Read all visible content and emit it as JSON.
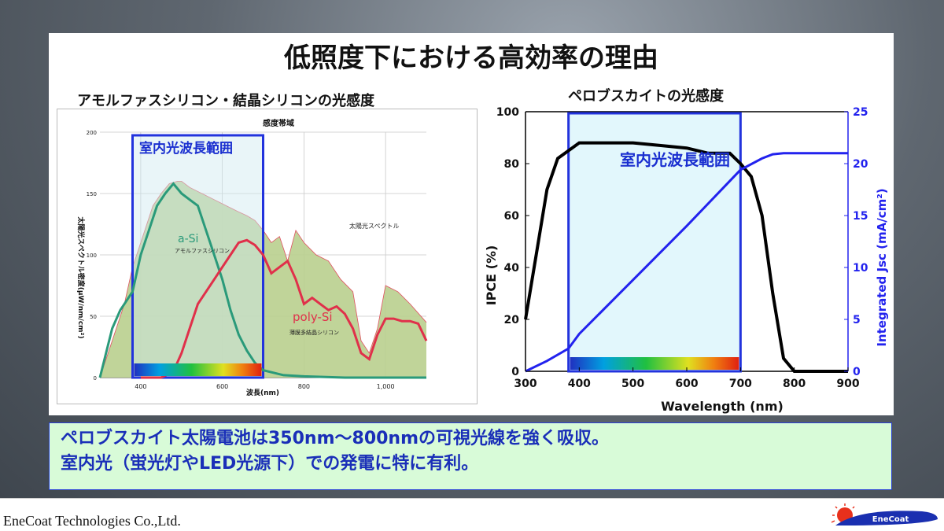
{
  "slide": {
    "title": "低照度下における高効率の理由",
    "left_subtitle": "アモルファスシリコン・結晶シリコンの光感度",
    "right_subtitle": "ペロブスカイトの光感度",
    "indoor_label": "室内光波長範囲",
    "note_line1": "ペロブスカイト太陽電池は350nm～800nmの可視光線を強く吸収。",
    "note_line2": "室内光（蛍光灯やLED光源下）での発電に特に有利。",
    "company": "EneCoat Technologies Co.,Ltd.",
    "logo_text": "EneCoat"
  },
  "chart_data": [
    {
      "type": "area",
      "title": "感度帯域",
      "ylabel": "太陽光スペクトル密度(μW/nm/cm²)",
      "xlabel": "波長(nm)",
      "xlim": [
        300,
        1100
      ],
      "ylim": [
        0,
        200
      ],
      "xticks": [
        "400",
        "600",
        "800",
        "1,000"
      ],
      "yticks": [
        "0",
        "50",
        "100",
        "150",
        "200"
      ],
      "indoor_range_nm": [
        380,
        700
      ],
      "grid": true,
      "spectrum_label": "太陽光スペクトル",
      "spectrum": {
        "x": [
          300,
          330,
          360,
          380,
          400,
          430,
          450,
          470,
          490,
          500,
          520,
          550,
          580,
          610,
          640,
          660,
          680,
          700,
          720,
          740,
          760,
          780,
          800,
          830,
          860,
          890,
          920,
          940,
          960,
          980,
          1000,
          1030,
          1060,
          1100
        ],
        "y": [
          0,
          30,
          60,
          90,
          110,
          140,
          150,
          158,
          160,
          160,
          155,
          150,
          145,
          140,
          135,
          132,
          128,
          120,
          110,
          115,
          95,
          120,
          110,
          100,
          95,
          80,
          70,
          30,
          20,
          40,
          75,
          70,
          60,
          45
        ]
      },
      "series": [
        {
          "name": "a-Si",
          "sublabel": "アモルファスシリコン",
          "color": "#2a9a7a",
          "x": [
            300,
            330,
            350,
            360,
            380,
            400,
            420,
            440,
            460,
            480,
            500,
            520,
            540,
            560,
            580,
            600,
            620,
            640,
            660,
            680,
            700,
            750,
            800,
            900,
            1000,
            1100
          ],
          "y": [
            0,
            40,
            55,
            60,
            70,
            100,
            120,
            140,
            150,
            158,
            150,
            145,
            140,
            120,
            100,
            80,
            55,
            35,
            22,
            12,
            6,
            2,
            1,
            0,
            0,
            0
          ]
        },
        {
          "name": "poly-Si",
          "sublabel": "薄膜多結晶シリコン",
          "color": "#e0304a",
          "x": [
            400,
            450,
            480,
            500,
            520,
            540,
            560,
            580,
            600,
            620,
            640,
            660,
            680,
            700,
            720,
            740,
            760,
            780,
            800,
            820,
            840,
            860,
            880,
            900,
            920,
            940,
            960,
            980,
            1000,
            1020,
            1040,
            1060,
            1080,
            1100
          ],
          "y": [
            0,
            0,
            5,
            20,
            40,
            60,
            70,
            80,
            90,
            100,
            110,
            112,
            108,
            100,
            85,
            90,
            95,
            80,
            60,
            65,
            60,
            55,
            58,
            52,
            40,
            20,
            15,
            35,
            48,
            48,
            46,
            46,
            44,
            30
          ]
        }
      ]
    },
    {
      "type": "line",
      "title": "ペロブスカイトの光感度",
      "xlabel": "Wavelength (nm)",
      "ylabel": "IPCE (%)",
      "y2label": "Integrated Jsc (mA/cm²)",
      "xlim": [
        300,
        900
      ],
      "ylim": [
        0,
        100
      ],
      "y2lim": [
        0,
        25
      ],
      "xticks": [
        "300",
        "400",
        "500",
        "600",
        "700",
        "800",
        "900"
      ],
      "yticks": [
        "0",
        "20",
        "40",
        "60",
        "80",
        "100"
      ],
      "y2ticks": [
        "0",
        "5",
        "10",
        "15",
        "20",
        "25"
      ],
      "indoor_range_nm": [
        380,
        700
      ],
      "series": [
        {
          "name": "IPCE",
          "axis": "left",
          "color": "#000000",
          "x": [
            300,
            320,
            340,
            360,
            380,
            400,
            450,
            500,
            550,
            600,
            640,
            660,
            680,
            700,
            720,
            740,
            760,
            780,
            800,
            850,
            900
          ],
          "y": [
            20,
            45,
            70,
            82,
            85,
            88,
            88,
            88,
            87,
            86,
            84,
            84,
            84,
            80,
            75,
            60,
            30,
            5,
            0,
            0,
            0
          ]
        },
        {
          "name": "Integrated Jsc",
          "axis": "right",
          "color": "#2222ee",
          "x": [
            300,
            340,
            380,
            400,
            500,
            600,
            700,
            740,
            760,
            780,
            800,
            850,
            900
          ],
          "y": [
            0,
            1.0,
            2.2,
            3.6,
            8.8,
            14.0,
            19.4,
            20.5,
            20.9,
            21.0,
            21.0,
            21.0,
            21.0
          ]
        }
      ]
    }
  ]
}
